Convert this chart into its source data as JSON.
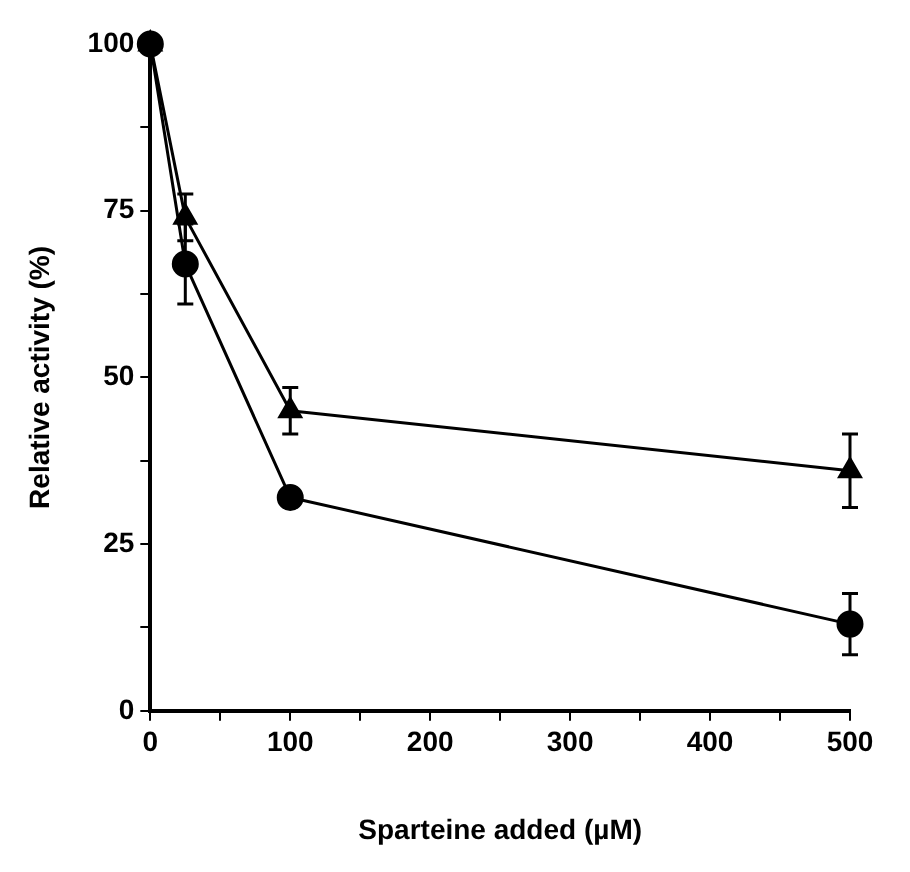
{
  "chart_data": {
    "type": "line",
    "xlabel": "Sparteine added (µM)",
    "ylabel": "Relative activity (%)",
    "x": [
      0,
      25,
      100,
      500
    ],
    "series": [
      {
        "color": "#000000",
        "marker": "triangle",
        "values": [
          100,
          74,
          45,
          36
        ],
        "errors": [
          null,
          3.5,
          3.5,
          5.5
        ]
      },
      {
        "color": "#000000",
        "marker": "circle",
        "values": [
          100,
          67,
          32,
          13
        ],
        "errors": [
          null,
          6,
          null,
          4.6
        ]
      }
    ],
    "xlim": [
      0,
      500
    ],
    "xticks": [
      0,
      {
        "value": 50,
        "label": null
      },
      100,
      {
        "value": 150,
        "label": null
      },
      200,
      {
        "value": 250,
        "label": null
      },
      300,
      {
        "value": 350,
        "label": null
      },
      400,
      {
        "value": 450,
        "label": null
      },
      500
    ],
    "ylim": [
      0,
      100
    ],
    "yticks": [
      0,
      {
        "value": 12.5,
        "label": null
      },
      25,
      {
        "value": 37.5,
        "label": null
      },
      50,
      {
        "value": 62.5,
        "label": null
      },
      75,
      {
        "value": 87.5,
        "label": null
      },
      100
    ],
    "grid": false,
    "legend": false
  }
}
